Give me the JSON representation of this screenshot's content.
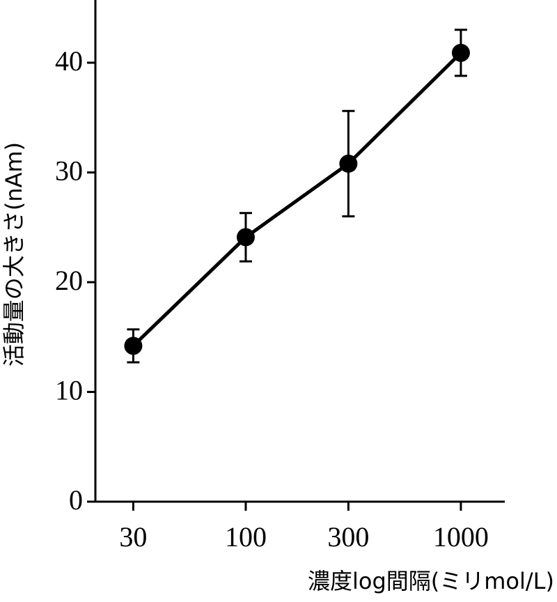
{
  "chart_data": {
    "type": "line",
    "y_label": "活動量の大きさ(nAm)",
    "x_label": "濃度log間隔(ミリmol/L)",
    "x": [
      30,
      100,
      300,
      1000
    ],
    "values": [
      14.2,
      24.1,
      30.8,
      40.9
    ],
    "errors": [
      1.5,
      2.2,
      4.8,
      2.1
    ],
    "color": "#000000",
    "x_log": true,
    "xlim": [
      20,
      1600
    ],
    "xticks": [
      30,
      100,
      300,
      1000
    ],
    "ylim": [
      0,
      46
    ],
    "yticks": [
      0,
      10,
      20,
      30,
      40
    ]
  }
}
